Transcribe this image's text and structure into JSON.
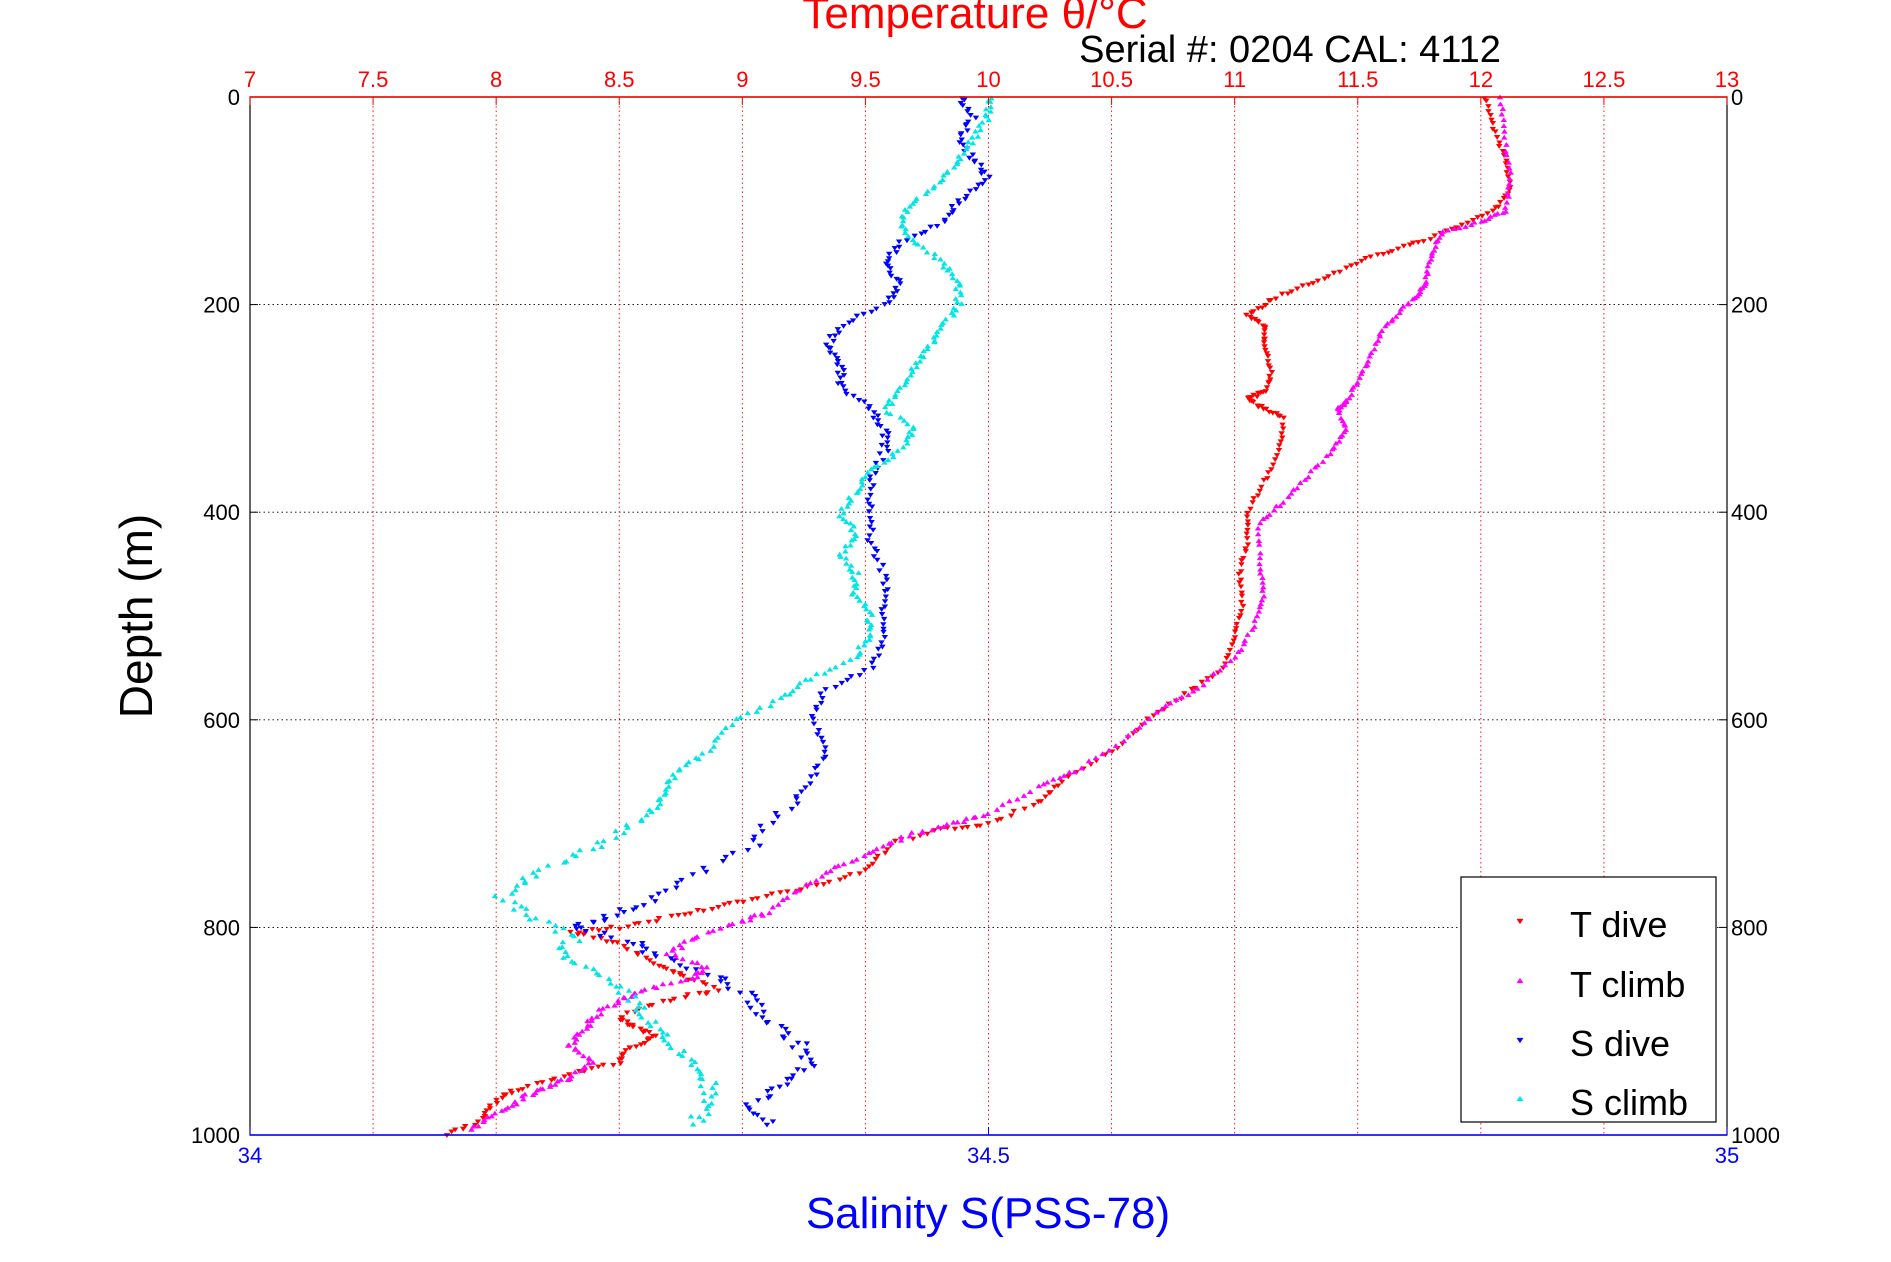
{
  "title": "Temperature θ/°C",
  "subtitle": "Serial #: 0204  CAL: 4112",
  "colors": {
    "temperature_axis": "#ff0000",
    "salinity_axis": "#0000ff",
    "t_dive": "#ff0000",
    "t_climb": "#ff00ff",
    "s_dive": "#0000ff",
    "s_climb": "#00e5e5",
    "grid": "#000000",
    "temp_grid": "#ff0000"
  },
  "chart_data": {
    "type": "scatter",
    "title": "Temperature θ/°C",
    "ylabel": "Depth (m)",
    "xlabel": "Salinity S(PSS-78)",
    "top_axis_label": "Temperature θ/°C",
    "ylim": [
      1000,
      0
    ],
    "y_reversed": true,
    "yticks": [
      "0",
      "200",
      "400",
      "600",
      "800",
      "1000"
    ],
    "temp_lim": [
      7,
      13
    ],
    "temp_ticks": [
      "7",
      "7.5",
      "8",
      "8.5",
      "9",
      "9.5",
      "10",
      "10.5",
      "11",
      "11.5",
      "12",
      "12.5",
      "13"
    ],
    "sal_lim": [
      34,
      35
    ],
    "sal_ticks": [
      "34",
      "34.5",
      "35"
    ],
    "grid": true,
    "legend_position": "bottom-right",
    "series": [
      {
        "name": "T dive",
        "axis": "temperature",
        "marker": "triangle-down",
        "points": [
          [
            12.02,
            0
          ],
          [
            12.05,
            30
          ],
          [
            12.1,
            60
          ],
          [
            12.12,
            90
          ],
          [
            12.05,
            110
          ],
          [
            11.9,
            125
          ],
          [
            11.75,
            140
          ],
          [
            11.6,
            150
          ],
          [
            11.45,
            165
          ],
          [
            11.3,
            180
          ],
          [
            11.15,
            195
          ],
          [
            11.05,
            210
          ],
          [
            11.12,
            220
          ],
          [
            11.12,
            240
          ],
          [
            11.15,
            265
          ],
          [
            11.12,
            285
          ],
          [
            11.05,
            290
          ],
          [
            11.12,
            300
          ],
          [
            11.2,
            310
          ],
          [
            11.18,
            340
          ],
          [
            11.12,
            370
          ],
          [
            11.05,
            400
          ],
          [
            11.05,
            430
          ],
          [
            11.02,
            460
          ],
          [
            11.03,
            490
          ],
          [
            11.0,
            520
          ],
          [
            10.95,
            550
          ],
          [
            10.8,
            575
          ],
          [
            10.65,
            600
          ],
          [
            10.5,
            630
          ],
          [
            10.3,
            660
          ],
          [
            10.2,
            680
          ],
          [
            10.0,
            700
          ],
          [
            9.8,
            705
          ],
          [
            9.6,
            720
          ],
          [
            9.5,
            745
          ],
          [
            9.3,
            760
          ],
          [
            9.1,
            770
          ],
          [
            8.9,
            780
          ],
          [
            8.7,
            790
          ],
          [
            8.5,
            800
          ],
          [
            8.3,
            805
          ],
          [
            8.5,
            815
          ],
          [
            8.65,
            835
          ],
          [
            8.75,
            845
          ],
          [
            8.9,
            860
          ],
          [
            8.7,
            870
          ],
          [
            8.5,
            885
          ],
          [
            8.55,
            895
          ],
          [
            8.65,
            905
          ],
          [
            8.55,
            915
          ],
          [
            8.5,
            930
          ],
          [
            8.3,
            940
          ],
          [
            8.1,
            955
          ],
          [
            8.0,
            965
          ],
          [
            7.95,
            985
          ],
          [
            7.8,
            1000
          ]
        ]
      },
      {
        "name": "T climb",
        "axis": "temperature",
        "marker": "triangle-up",
        "points": [
          [
            12.08,
            0
          ],
          [
            12.1,
            40
          ],
          [
            12.12,
            80
          ],
          [
            12.1,
            110
          ],
          [
            12.0,
            120
          ],
          [
            11.85,
            130
          ],
          [
            11.8,
            150
          ],
          [
            11.78,
            175
          ],
          [
            11.75,
            190
          ],
          [
            11.68,
            205
          ],
          [
            11.6,
            225
          ],
          [
            11.55,
            250
          ],
          [
            11.5,
            275
          ],
          [
            11.45,
            295
          ],
          [
            11.42,
            300
          ],
          [
            11.45,
            320
          ],
          [
            11.4,
            340
          ],
          [
            11.3,
            365
          ],
          [
            11.2,
            390
          ],
          [
            11.1,
            410
          ],
          [
            11.1,
            450
          ],
          [
            11.12,
            480
          ],
          [
            11.08,
            510
          ],
          [
            11.0,
            540
          ],
          [
            10.85,
            570
          ],
          [
            10.7,
            590
          ],
          [
            10.55,
            620
          ],
          [
            10.35,
            650
          ],
          [
            10.2,
            665
          ],
          [
            10.0,
            690
          ],
          [
            9.85,
            700
          ],
          [
            9.7,
            710
          ],
          [
            9.55,
            725
          ],
          [
            9.4,
            740
          ],
          [
            9.25,
            760
          ],
          [
            9.1,
            785
          ],
          [
            9.0,
            795
          ],
          [
            8.8,
            810
          ],
          [
            8.7,
            825
          ],
          [
            8.85,
            840
          ],
          [
            8.8,
            850
          ],
          [
            8.6,
            860
          ],
          [
            8.5,
            870
          ],
          [
            8.4,
            885
          ],
          [
            8.35,
            900
          ],
          [
            8.3,
            915
          ],
          [
            8.4,
            930
          ],
          [
            8.3,
            945
          ],
          [
            8.2,
            955
          ],
          [
            8.1,
            965
          ],
          [
            8.0,
            980
          ],
          [
            7.9,
            995
          ]
        ]
      },
      {
        "name": "S dive",
        "axis": "salinity",
        "marker": "triangle-down",
        "points": [
          [
            34.48,
            0
          ],
          [
            34.49,
            20
          ],
          [
            34.48,
            40
          ],
          [
            34.49,
            60
          ],
          [
            34.5,
            80
          ],
          [
            34.48,
            100
          ],
          [
            34.47,
            120
          ],
          [
            34.44,
            140
          ],
          [
            34.43,
            160
          ],
          [
            34.44,
            180
          ],
          [
            34.43,
            200
          ],
          [
            34.4,
            220
          ],
          [
            34.39,
            240
          ],
          [
            34.4,
            260
          ],
          [
            34.4,
            280
          ],
          [
            34.42,
            300
          ],
          [
            34.43,
            320
          ],
          [
            34.43,
            340
          ],
          [
            34.42,
            370
          ],
          [
            34.42,
            400
          ],
          [
            34.42,
            430
          ],
          [
            34.43,
            460
          ],
          [
            34.43,
            490
          ],
          [
            34.43,
            520
          ],
          [
            34.42,
            550
          ],
          [
            34.39,
            570
          ],
          [
            34.38,
            600
          ],
          [
            34.39,
            630
          ],
          [
            34.38,
            660
          ],
          [
            34.36,
            690
          ],
          [
            34.34,
            720
          ],
          [
            34.3,
            750
          ],
          [
            34.27,
            775
          ],
          [
            34.24,
            790
          ],
          [
            34.22,
            800
          ],
          [
            34.26,
            815
          ],
          [
            34.28,
            830
          ],
          [
            34.32,
            850
          ],
          [
            34.34,
            870
          ],
          [
            34.35,
            890
          ],
          [
            34.37,
            910
          ],
          [
            34.38,
            930
          ],
          [
            34.36,
            950
          ],
          [
            34.34,
            970
          ],
          [
            34.35,
            990
          ]
        ]
      },
      {
        "name": "S climb",
        "axis": "salinity",
        "marker": "triangle-up",
        "points": [
          [
            34.5,
            0
          ],
          [
            34.5,
            20
          ],
          [
            34.49,
            40
          ],
          [
            34.48,
            60
          ],
          [
            34.47,
            80
          ],
          [
            34.45,
            100
          ],
          [
            34.44,
            120
          ],
          [
            34.45,
            140
          ],
          [
            34.47,
            160
          ],
          [
            34.48,
            180
          ],
          [
            34.48,
            200
          ],
          [
            34.47,
            220
          ],
          [
            34.46,
            240
          ],
          [
            34.45,
            260
          ],
          [
            34.44,
            280
          ],
          [
            34.43,
            300
          ],
          [
            34.45,
            320
          ],
          [
            34.44,
            340
          ],
          [
            34.42,
            360
          ],
          [
            34.41,
            380
          ],
          [
            34.4,
            400
          ],
          [
            34.41,
            420
          ],
          [
            34.4,
            440
          ],
          [
            34.41,
            460
          ],
          [
            34.41,
            480
          ],
          [
            34.42,
            500
          ],
          [
            34.42,
            520
          ],
          [
            34.41,
            540
          ],
          [
            34.38,
            560
          ],
          [
            34.36,
            580
          ],
          [
            34.33,
            600
          ],
          [
            34.31,
            630
          ],
          [
            34.29,
            650
          ],
          [
            34.28,
            670
          ],
          [
            34.27,
            690
          ],
          [
            34.25,
            710
          ],
          [
            34.22,
            730
          ],
          [
            34.19,
            750
          ],
          [
            34.17,
            770
          ],
          [
            34.19,
            790
          ],
          [
            34.22,
            810
          ],
          [
            34.21,
            830
          ],
          [
            34.24,
            850
          ],
          [
            34.26,
            870
          ],
          [
            34.27,
            890
          ],
          [
            34.28,
            910
          ],
          [
            34.3,
            930
          ],
          [
            34.31,
            950
          ],
          [
            34.31,
            970
          ],
          [
            34.3,
            990
          ]
        ]
      }
    ]
  }
}
